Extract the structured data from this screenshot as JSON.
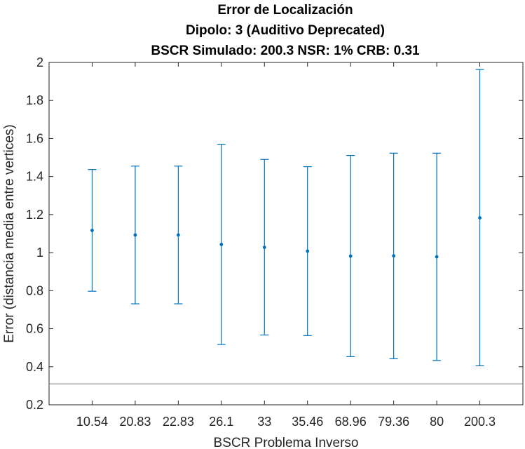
{
  "chart_data": {
    "type": "errorbar",
    "title": [
      "Error de Localización",
      "Dipolo: 3 (Auditivo Deprecated)",
      "BSCR Simulado: 200.3 NSR: 1% CRB: 0.31"
    ],
    "xlabel": "BSCR Problema Inverso",
    "ylabel": "Error (distancia media entre vertices)",
    "categories": [
      "10.54",
      "20.83",
      "22.83",
      "26.1",
      "33",
      "35.46",
      "68.96",
      "79.36",
      "80",
      "200.3"
    ],
    "series": [
      {
        "mean": [
          1.117,
          1.093,
          1.093,
          1.043,
          1.028,
          1.008,
          0.982,
          0.983,
          0.978,
          1.183
        ],
        "lower": [
          0.797,
          0.731,
          0.731,
          0.517,
          0.567,
          0.564,
          0.453,
          0.442,
          0.433,
          0.405
        ],
        "upper": [
          1.437,
          1.455,
          1.455,
          1.57,
          1.49,
          1.452,
          1.511,
          1.523,
          1.523,
          1.963
        ],
        "color": "#0072BD"
      }
    ],
    "reference_line": {
      "y": 0.31,
      "color": "#808080"
    },
    "ylim": [
      0.2,
      2
    ],
    "yticks": [
      "0.2",
      "0.4",
      "0.6",
      "0.8",
      "1",
      "1.2",
      "1.4",
      "1.6",
      "1.8",
      "2"
    ],
    "grid": false
  }
}
